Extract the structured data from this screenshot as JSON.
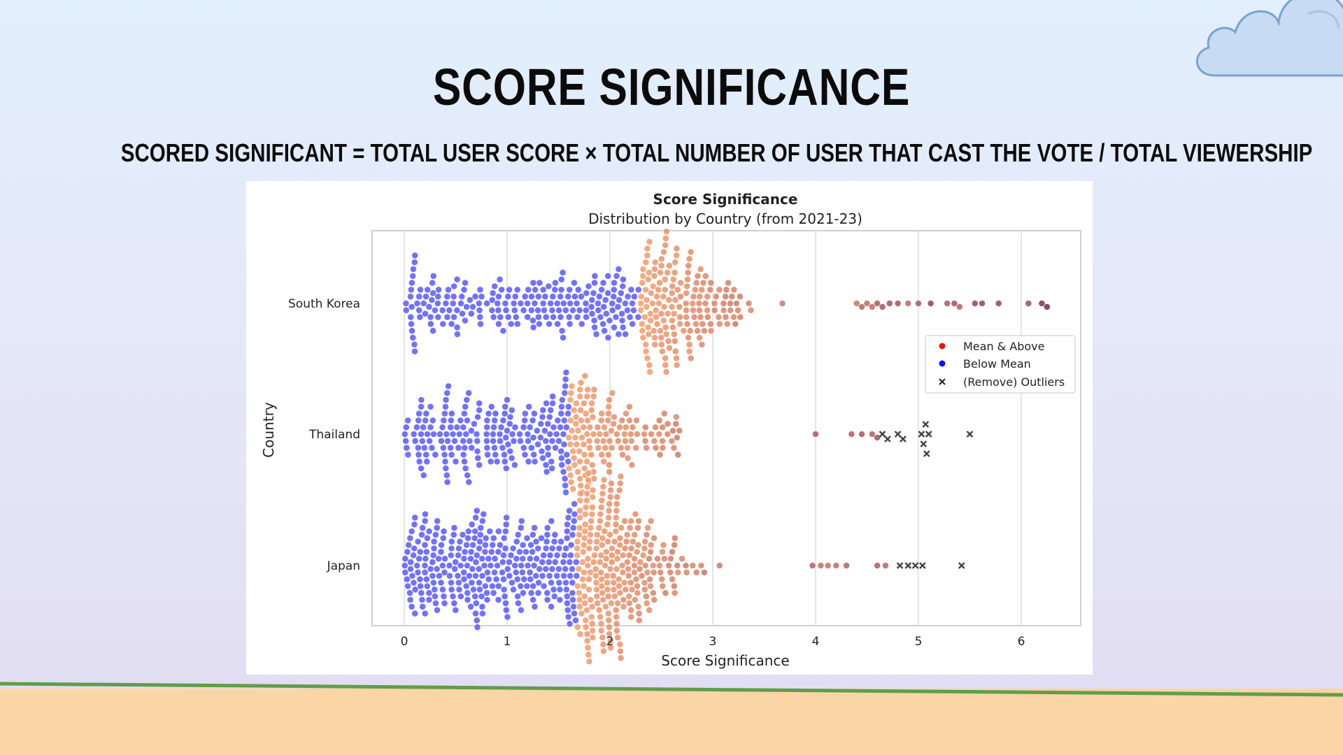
{
  "slide": {
    "title": "SCORE SIGNIFICANCE",
    "formula": "SCORED SIGNIFICANT = TOTAL USER SCORE × TOTAL NUMBER OF USER THAT CAST THE VOTE / TOTAL VIEWERSHIP"
  },
  "colors": {
    "below_mean": "#5a5af0",
    "above_mean_light": "#f0a070",
    "above_mean_dark": "#6a2452",
    "outlier": "#444444",
    "legend_mean_above": "#ee1111",
    "legend_below_mean": "#1111ee",
    "ground": "#fad5a6",
    "ground_line": "#5f9e4a"
  },
  "chart_data": {
    "type": "scatter",
    "subtype": "swarm",
    "title": "Score Significance",
    "subtitle": "Distribution by Country (from 2021-23)",
    "xlabel": "Score Significance",
    "ylabel": "Country",
    "xlim": [
      -0.3,
      6.57
    ],
    "xticks": [
      "0",
      "1",
      "2",
      "3",
      "4",
      "5",
      "6"
    ],
    "grid": "vertical",
    "legend": {
      "placement": "right",
      "entries": [
        "Mean & Above",
        "Below Mean",
        "(Remove) Outliers"
      ]
    },
    "categories": [
      "South Korea",
      "Thailand",
      "Japan"
    ],
    "series": [
      {
        "country": "South Korea",
        "mean": 2.3,
        "range": [
          0,
          4.3
        ],
        "count": 380,
        "tail": [
          4.4,
          4.45,
          4.5,
          4.55,
          4.6,
          4.65,
          4.72,
          4.8,
          4.9,
          5.0,
          5.12,
          5.28,
          5.35,
          5.4,
          5.55,
          5.62,
          5.78,
          6.07,
          6.2,
          6.25
        ],
        "outliers": []
      },
      {
        "country": "Thailand",
        "mean": 1.6,
        "range": [
          0,
          3.9
        ],
        "count": 330,
        "tail": [
          4.0,
          4.35,
          4.45,
          4.55,
          4.6
        ],
        "outliers": [
          4.65,
          4.7,
          4.8,
          4.85,
          5.03,
          5.05,
          5.07,
          5.08,
          5.1,
          5.5
        ]
      },
      {
        "country": "Japan",
        "mean": 1.68,
        "range": [
          0,
          3.85
        ],
        "count": 560,
        "tail": [
          3.97,
          4.05,
          4.12,
          4.2,
          4.3,
          4.6,
          4.68
        ],
        "outliers": [
          4.82,
          4.9,
          4.97,
          5.04,
          5.42
        ]
      }
    ]
  }
}
